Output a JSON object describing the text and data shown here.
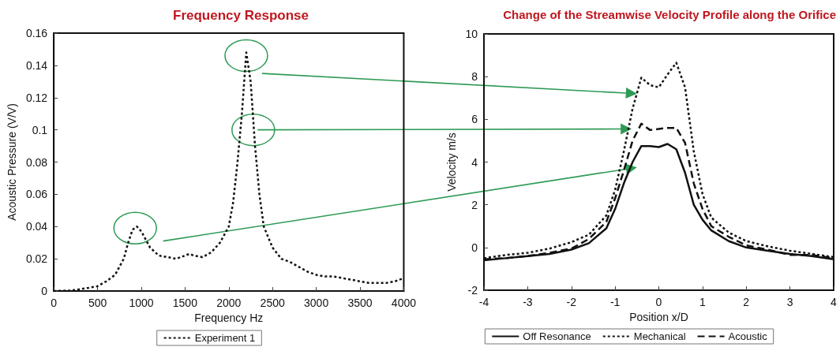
{
  "chart_data": [
    {
      "type": "line",
      "title": "Frequency Response",
      "xlabel": "Frequency Hz",
      "ylabel": "Acoustic Pressure (V/V)",
      "x": [
        0,
        200,
        400,
        500,
        600,
        700,
        800,
        850,
        900,
        950,
        1000,
        1050,
        1100,
        1200,
        1300,
        1400,
        1500,
        1550,
        1600,
        1700,
        1800,
        1900,
        2000,
        2050,
        2100,
        2150,
        2200,
        2250,
        2300,
        2350,
        2400,
        2500,
        2600,
        2700,
        2800,
        2900,
        3000,
        3100,
        3200,
        3300,
        3400,
        3500,
        3600,
        3700,
        3800,
        3900,
        4000
      ],
      "series": [
        {
          "name": "Experiment 1",
          "color": "#111111",
          "line_style": "dotted",
          "values": [
            0,
            0.0003,
            0.002,
            0.003,
            0.006,
            0.01,
            0.02,
            0.03,
            0.038,
            0.04,
            0.037,
            0.032,
            0.027,
            0.022,
            0.021,
            0.02,
            0.022,
            0.023,
            0.022,
            0.021,
            0.024,
            0.03,
            0.04,
            0.055,
            0.08,
            0.11,
            0.148,
            0.13,
            0.09,
            0.06,
            0.04,
            0.027,
            0.02,
            0.018,
            0.015,
            0.012,
            0.01,
            0.009,
            0.009,
            0.008,
            0.007,
            0.006,
            0.005,
            0.005,
            0.005,
            0.006,
            0.008
          ]
        }
      ],
      "xlim": [
        0,
        4000
      ],
      "xticks": [
        0,
        500,
        1000,
        1500,
        2000,
        2500,
        3000,
        3500,
        4000
      ],
      "ylim": [
        0,
        0.16
      ],
      "yticks": [
        0,
        0.02,
        0.04,
        0.06,
        0.08,
        0.1,
        0.12,
        0.14,
        0.16
      ],
      "legend": "bottom",
      "marker": "none",
      "grid": false
    },
    {
      "type": "line",
      "title": "Change of the Streamwise Velocity Profile along the Orifice",
      "xlabel": "Position x/D",
      "ylabel": "Velocity m/s",
      "x": [
        -4,
        -3.5,
        -3,
        -2.5,
        -2,
        -1.6,
        -1.2,
        -1,
        -0.8,
        -0.6,
        -0.4,
        -0.2,
        0,
        0.2,
        0.4,
        0.6,
        0.8,
        1,
        1.2,
        1.6,
        2,
        2.5,
        3,
        3.5,
        4
      ],
      "series": [
        {
          "name": "Off Resonance",
          "color": "#111111",
          "line_style": "solid",
          "values": [
            -0.6,
            -0.5,
            -0.4,
            -0.3,
            -0.1,
            0.2,
            0.9,
            1.8,
            3,
            4,
            4.75,
            4.75,
            4.7,
            4.85,
            4.6,
            3.5,
            2,
            1.3,
            0.8,
            0.3,
            0,
            -0.15,
            -0.3,
            -0.4,
            -0.55
          ]
        },
        {
          "name": "Mechanical",
          "color": "#111111",
          "line_style": "dotted",
          "values": [
            -0.5,
            -0.35,
            -0.25,
            -0.05,
            0.25,
            0.6,
            1.5,
            2.7,
            4.5,
            6.5,
            7.95,
            7.6,
            7.5,
            8.1,
            8.65,
            7.5,
            4.5,
            2.5,
            1.4,
            0.7,
            0.3,
            0.05,
            -0.15,
            -0.3,
            -0.45
          ]
        },
        {
          "name": "Acoustic",
          "color": "#111111",
          "line_style": "dashed",
          "values": [
            -0.55,
            -0.5,
            -0.4,
            -0.25,
            -0.05,
            0.4,
            1.2,
            2.3,
            3.6,
            5,
            5.8,
            5.5,
            5.55,
            5.6,
            5.6,
            4.9,
            3,
            1.8,
            1,
            0.5,
            0.1,
            -0.1,
            -0.35,
            -0.35,
            -0.5
          ]
        }
      ],
      "xlim": [
        -4,
        4
      ],
      "xticks": [
        -4,
        -3,
        -2,
        -1,
        0,
        1,
        2,
        3,
        4
      ],
      "ylim": [
        -2,
        10
      ],
      "yticks": [
        -2,
        0,
        2,
        4,
        6,
        8,
        10
      ],
      "legend": "bottom",
      "marker": "none",
      "grid": false
    }
  ]
}
